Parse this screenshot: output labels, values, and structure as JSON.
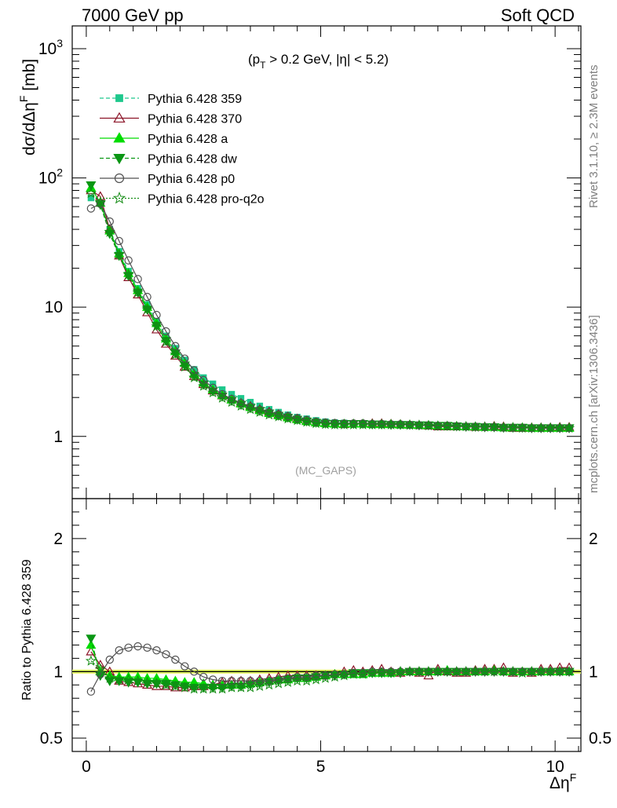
{
  "header": {
    "left": "7000 GeV pp",
    "right": "Soft QCD"
  },
  "side_labels": {
    "rivet": "Rivet 3.1.10, ≥ 2.3M events",
    "site": "mcplots.cern.ch [arXiv:1306.3436]"
  },
  "chart_data": [
    {
      "type": "line",
      "cut_label": "(p_T > 0.2 GeV, |η| < 5.2)",
      "analysis_label": "(MC_GAPS)",
      "ylabel": "dσ/dΔη^F [mb]",
      "xlabel": "Δη^F",
      "y_scale": "log",
      "ylim": [
        0.33,
        1500
      ],
      "xlim": [
        -0.3,
        10.55
      ],
      "x_ticks": [
        "0",
        "5",
        "10"
      ],
      "y_ticks": [
        "1",
        "10",
        "10^2",
        "10^3"
      ],
      "grid": false,
      "legend_placement": "top-left",
      "x": [
        0.1,
        0.3,
        0.5,
        0.7,
        0.9,
        1.1,
        1.3,
        1.5,
        1.7,
        1.9,
        2.1,
        2.3,
        2.5,
        2.7,
        2.9,
        3.1,
        3.3,
        3.5,
        3.7,
        3.9,
        4.1,
        4.3,
        4.5,
        4.7,
        4.9,
        5.1,
        5.3,
        5.5,
        5.7,
        5.9,
        6.1,
        6.3,
        6.5,
        6.7,
        6.9,
        7.1,
        7.3,
        7.5,
        7.7,
        7.9,
        8.1,
        8.3,
        8.5,
        8.7,
        8.9,
        9.1,
        9.3,
        9.5,
        9.7,
        9.9,
        10.1,
        10.3
      ],
      "series": [
        {
          "name": "Pythia 6.428 359",
          "color": "#1ec88c",
          "values": [
            70,
            64,
            40,
            27,
            19,
            14,
            10.5,
            7.8,
            6.0,
            4.8,
            3.9,
            3.3,
            2.85,
            2.55,
            2.3,
            2.12,
            1.97,
            1.84,
            1.72,
            1.62,
            1.54,
            1.47,
            1.41,
            1.37,
            1.33,
            1.3,
            1.28,
            1.27,
            1.26,
            1.25,
            1.25,
            1.25,
            1.24,
            1.24,
            1.23,
            1.23,
            1.22,
            1.21,
            1.2,
            1.2,
            1.19,
            1.19,
            1.18,
            1.18,
            1.17,
            1.17,
            1.17,
            1.16,
            1.16,
            1.16,
            1.16,
            1.16
          ]
        },
        {
          "name": "Pythia 6.428 370",
          "color": "#8c1428",
          "values": [
            80,
            72,
            40,
            25,
            17,
            12.5,
            9.1,
            6.7,
            5.2,
            4.2,
            3.45,
            2.92,
            2.53,
            2.26,
            2.07,
            1.93,
            1.81,
            1.71,
            1.62,
            1.55,
            1.48,
            1.42,
            1.37,
            1.32,
            1.28,
            1.26,
            1.25,
            1.24,
            1.25,
            1.25,
            1.26,
            1.26,
            1.25,
            1.24,
            1.23,
            1.22,
            1.21,
            1.19,
            1.19,
            1.19,
            1.19,
            1.18,
            1.19,
            1.2,
            1.19,
            1.16,
            1.16,
            1.17,
            1.17,
            1.17,
            1.18,
            1.18
          ]
        },
        {
          "name": "Pythia 6.428 a",
          "color": "#00dc00",
          "values": [
            84,
            64,
            39,
            26,
            18.3,
            13.5,
            10.0,
            7.5,
            5.7,
            4.55,
            3.7,
            3.05,
            2.6,
            2.3,
            2.08,
            1.92,
            1.79,
            1.68,
            1.59,
            1.51,
            1.45,
            1.4,
            1.35,
            1.31,
            1.28,
            1.26,
            1.25,
            1.25,
            1.25,
            1.25,
            1.24,
            1.24,
            1.24,
            1.23,
            1.23,
            1.22,
            1.22,
            1.21,
            1.2,
            1.2,
            1.19,
            1.19,
            1.18,
            1.18,
            1.17,
            1.17,
            1.17,
            1.16,
            1.16,
            1.16,
            1.16,
            1.16
          ]
        },
        {
          "name": "Pythia 6.428 dw",
          "color": "#0a9614",
          "values": [
            88,
            62,
            37,
            25,
            17.5,
            13.0,
            9.6,
            7.2,
            5.5,
            4.4,
            3.55,
            2.95,
            2.52,
            2.24,
            2.04,
            1.89,
            1.76,
            1.66,
            1.58,
            1.51,
            1.45,
            1.4,
            1.35,
            1.31,
            1.28,
            1.26,
            1.25,
            1.25,
            1.25,
            1.25,
            1.24,
            1.24,
            1.23,
            1.23,
            1.23,
            1.22,
            1.22,
            1.21,
            1.21,
            1.2,
            1.19,
            1.19,
            1.18,
            1.18,
            1.17,
            1.17,
            1.17,
            1.16,
            1.16,
            1.16,
            1.16,
            1.16
          ]
        },
        {
          "name": "Pythia 6.428 p0",
          "color": "#505050",
          "values": [
            58,
            63,
            46,
            32.5,
            23,
            16.5,
            12.0,
            8.7,
            6.5,
            5.0,
            4.0,
            3.25,
            2.73,
            2.38,
            2.12,
            1.95,
            1.81,
            1.7,
            1.61,
            1.54,
            1.48,
            1.43,
            1.38,
            1.34,
            1.3,
            1.28,
            1.27,
            1.26,
            1.26,
            1.26,
            1.25,
            1.25,
            1.24,
            1.24,
            1.23,
            1.22,
            1.22,
            1.21,
            1.21,
            1.2,
            1.19,
            1.19,
            1.18,
            1.18,
            1.17,
            1.17,
            1.17,
            1.16,
            1.16,
            1.16,
            1.16,
            1.16
          ]
        },
        {
          "name": "Pythia 6.428 pro-q2o",
          "color": "#148c14",
          "values": [
            76,
            65,
            38,
            25.5,
            17.8,
            13.0,
            9.6,
            7.1,
            5.4,
            4.3,
            3.45,
            2.85,
            2.45,
            2.18,
            1.98,
            1.84,
            1.72,
            1.62,
            1.54,
            1.47,
            1.42,
            1.37,
            1.33,
            1.29,
            1.26,
            1.24,
            1.23,
            1.23,
            1.23,
            1.23,
            1.23,
            1.23,
            1.23,
            1.23,
            1.22,
            1.22,
            1.21,
            1.2,
            1.2,
            1.19,
            1.19,
            1.18,
            1.18,
            1.18,
            1.17,
            1.17,
            1.16,
            1.16,
            1.16,
            1.16,
            1.16,
            1.16
          ]
        }
      ]
    },
    {
      "type": "line",
      "ylabel": "Ratio to Pythia 6.428 359",
      "xlabel": "Δη^F",
      "ylim": [
        0.4,
        2.3
      ],
      "xlim": [
        -0.3,
        10.55
      ],
      "x_ticks": [
        "0",
        "5",
        "10"
      ],
      "y_ticks": [
        "0.5",
        "1",
        "2"
      ],
      "grid": false,
      "reference_band_color": "#e6ff66",
      "x": [
        0.1,
        0.3,
        0.5,
        0.7,
        0.9,
        1.1,
        1.3,
        1.5,
        1.7,
        1.9,
        2.1,
        2.3,
        2.5,
        2.7,
        2.9,
        3.1,
        3.3,
        3.5,
        3.7,
        3.9,
        4.1,
        4.3,
        4.5,
        4.7,
        4.9,
        5.1,
        5.3,
        5.5,
        5.7,
        5.9,
        6.1,
        6.3,
        6.5,
        6.7,
        6.9,
        7.1,
        7.3,
        7.5,
        7.7,
        7.9,
        8.1,
        8.3,
        8.5,
        8.7,
        8.9,
        9.1,
        9.3,
        9.5,
        9.7,
        9.9,
        10.1,
        10.3
      ],
      "series": [
        {
          "name": "Pythia 6.428 359",
          "color": "#1ec88c",
          "values": [
            1.0,
            1.0,
            1.0,
            1.0,
            1.0,
            1.0,
            1.0,
            1.0,
            1.0,
            1.0,
            1.0,
            1.0,
            1.0,
            1.0,
            1.0,
            1.0,
            1.0,
            1.0,
            1.0,
            1.0,
            1.0,
            1.0,
            1.0,
            1.0,
            1.0,
            1.0,
            1.0,
            1.0,
            1.0,
            1.0,
            1.0,
            1.0,
            1.0,
            1.0,
            1.0,
            1.0,
            1.0,
            1.0,
            1.0,
            1.0,
            1.0,
            1.0,
            1.0,
            1.0,
            1.0,
            1.0,
            1.0,
            1.0,
            1.0,
            1.0,
            1.0,
            1.0
          ]
        },
        {
          "name": "Pythia 6.428 370",
          "color": "#8c1428",
          "values": [
            1.15,
            1.05,
            1.0,
            0.93,
            0.92,
            0.91,
            0.9,
            0.89,
            0.89,
            0.88,
            0.88,
            0.89,
            0.89,
            0.9,
            0.92,
            0.93,
            0.93,
            0.93,
            0.94,
            0.95,
            0.96,
            0.97,
            0.97,
            0.97,
            0.97,
            0.97,
            0.98,
            1.0,
            1.01,
            1.0,
            1.01,
            1.02,
            1.0,
            0.99,
            1.0,
            0.99,
            0.97,
            1.02,
            1.0,
            0.99,
            0.99,
            1.01,
            1.02,
            1.02,
            1.03,
            0.99,
            1.0,
            0.99,
            1.02,
            1.02,
            1.03,
            1.03
          ]
        },
        {
          "name": "Pythia 6.428 a",
          "color": "#00dc00",
          "values": [
            1.2,
            1.0,
            0.97,
            0.96,
            0.96,
            0.96,
            0.95,
            0.95,
            0.94,
            0.93,
            0.92,
            0.92,
            0.91,
            0.9,
            0.9,
            0.9,
            0.9,
            0.91,
            0.92,
            0.93,
            0.94,
            0.94,
            0.95,
            0.95,
            0.96,
            0.97,
            0.98,
            0.98,
            0.98,
            0.98,
            0.99,
            0.99,
            0.99,
            1.0,
            1.0,
            1.0,
            1.0,
            1.0,
            1.01,
            1.0,
            1.0,
            1.0,
            1.0,
            1.01,
            1.0,
            1.0,
            1.0,
            1.0,
            1.0,
            1.0,
            1.0,
            1.0
          ]
        },
        {
          "name": "Pythia 6.428 dw",
          "color": "#0a9614",
          "values": [
            1.25,
            0.97,
            0.93,
            0.93,
            0.92,
            0.92,
            0.91,
            0.91,
            0.91,
            0.9,
            0.89,
            0.88,
            0.88,
            0.88,
            0.88,
            0.89,
            0.89,
            0.9,
            0.91,
            0.92,
            0.93,
            0.94,
            0.95,
            0.95,
            0.96,
            0.97,
            0.97,
            0.98,
            0.99,
            0.99,
            0.99,
            0.99,
            0.99,
            0.99,
            1.0,
            1.0,
            1.0,
            1.0,
            1.0,
            1.0,
            1.0,
            1.0,
            1.0,
            1.0,
            1.0,
            1.0,
            1.0,
            1.0,
            1.0,
            1.0,
            1.0,
            1.0
          ]
        },
        {
          "name": "Pythia 6.428 p0",
          "color": "#505050",
          "values": [
            0.85,
            0.98,
            1.09,
            1.16,
            1.18,
            1.19,
            1.18,
            1.16,
            1.13,
            1.09,
            1.04,
            1.0,
            0.96,
            0.94,
            0.93,
            0.93,
            0.93,
            0.93,
            0.93,
            0.93,
            0.94,
            0.95,
            0.96,
            0.96,
            0.97,
            0.97,
            0.98,
            0.98,
            0.99,
            0.99,
            1.0,
            1.0,
            1.0,
            1.0,
            1.0,
            1.0,
            1.0,
            1.0,
            1.0,
            1.0,
            1.0,
            1.0,
            1.0,
            1.0,
            1.0,
            1.0,
            1.0,
            1.0,
            1.0,
            1.0,
            1.0,
            1.0
          ]
        },
        {
          "name": "Pythia 6.428 pro-q2o",
          "color": "#148c14",
          "values": [
            1.08,
            1.02,
            0.95,
            0.94,
            0.94,
            0.93,
            0.92,
            0.91,
            0.9,
            0.89,
            0.88,
            0.87,
            0.87,
            0.87,
            0.87,
            0.88,
            0.88,
            0.88,
            0.89,
            0.9,
            0.91,
            0.92,
            0.93,
            0.93,
            0.94,
            0.95,
            0.96,
            0.97,
            0.98,
            0.98,
            0.99,
            0.99,
            0.99,
            1.0,
            1.0,
            1.0,
            1.0,
            1.0,
            1.0,
            1.0,
            1.0,
            1.0,
            1.0,
            1.0,
            1.0,
            1.0,
            0.99,
            1.0,
            1.0,
            1.0,
            1.0,
            1.0
          ]
        }
      ]
    }
  ]
}
